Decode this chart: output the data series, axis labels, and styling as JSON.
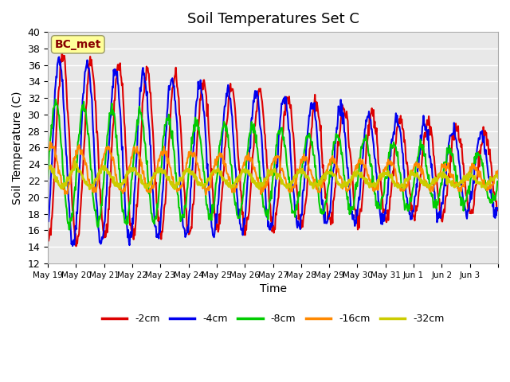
{
  "title": "Soil Temperatures Set C",
  "xlabel": "Time",
  "ylabel": "Soil Temperature (C)",
  "ylim": [
    12,
    40
  ],
  "yticks": [
    12,
    14,
    16,
    18,
    20,
    22,
    24,
    26,
    28,
    30,
    32,
    34,
    36,
    38,
    40
  ],
  "bg_color": "#e8e8e8",
  "fig_color": "#ffffff",
  "annotation_text": "BC_met",
  "annotation_bg": "#ffff99",
  "annotation_border": "#999966",
  "series_colors": [
    "#dd0000",
    "#0000ee",
    "#00cc00",
    "#ff8800",
    "#cccc00"
  ],
  "series_labels": [
    "-2cm",
    "-4cm",
    "-8cm",
    "-16cm",
    "-32cm"
  ],
  "series_widths": [
    1.5,
    1.5,
    1.5,
    1.5,
    2.0
  ],
  "num_days": 16,
  "x_tick_labels": [
    "May 19",
    "May 20",
    "May 21",
    "May 22",
    "May 23",
    "May 24",
    "May 25",
    "May 26",
    "May 27",
    "May 28",
    "May 29",
    "May 30",
    "May 31",
    "Jun 1",
    "Jun 2",
    "Jun 3",
    ""
  ]
}
